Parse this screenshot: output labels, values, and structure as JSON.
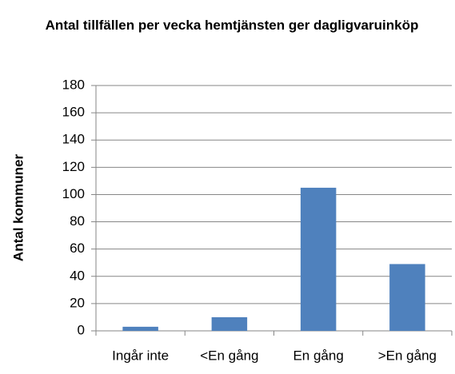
{
  "chart_data": {
    "type": "bar",
    "title": "Antal tillfällen per vecka hemtjänsten ger dagligvaruinköp",
    "y_label": "Antal kommuner",
    "categories": [
      "Ingår inte",
      "<En gång",
      "En gång",
      ">En gång"
    ],
    "values": [
      3,
      10,
      105,
      49
    ],
    "color": "#4f81bd",
    "ylim": [
      0,
      180
    ],
    "yticks": [
      0,
      20,
      40,
      60,
      80,
      100,
      120,
      140,
      160,
      180
    ],
    "grid": true
  }
}
